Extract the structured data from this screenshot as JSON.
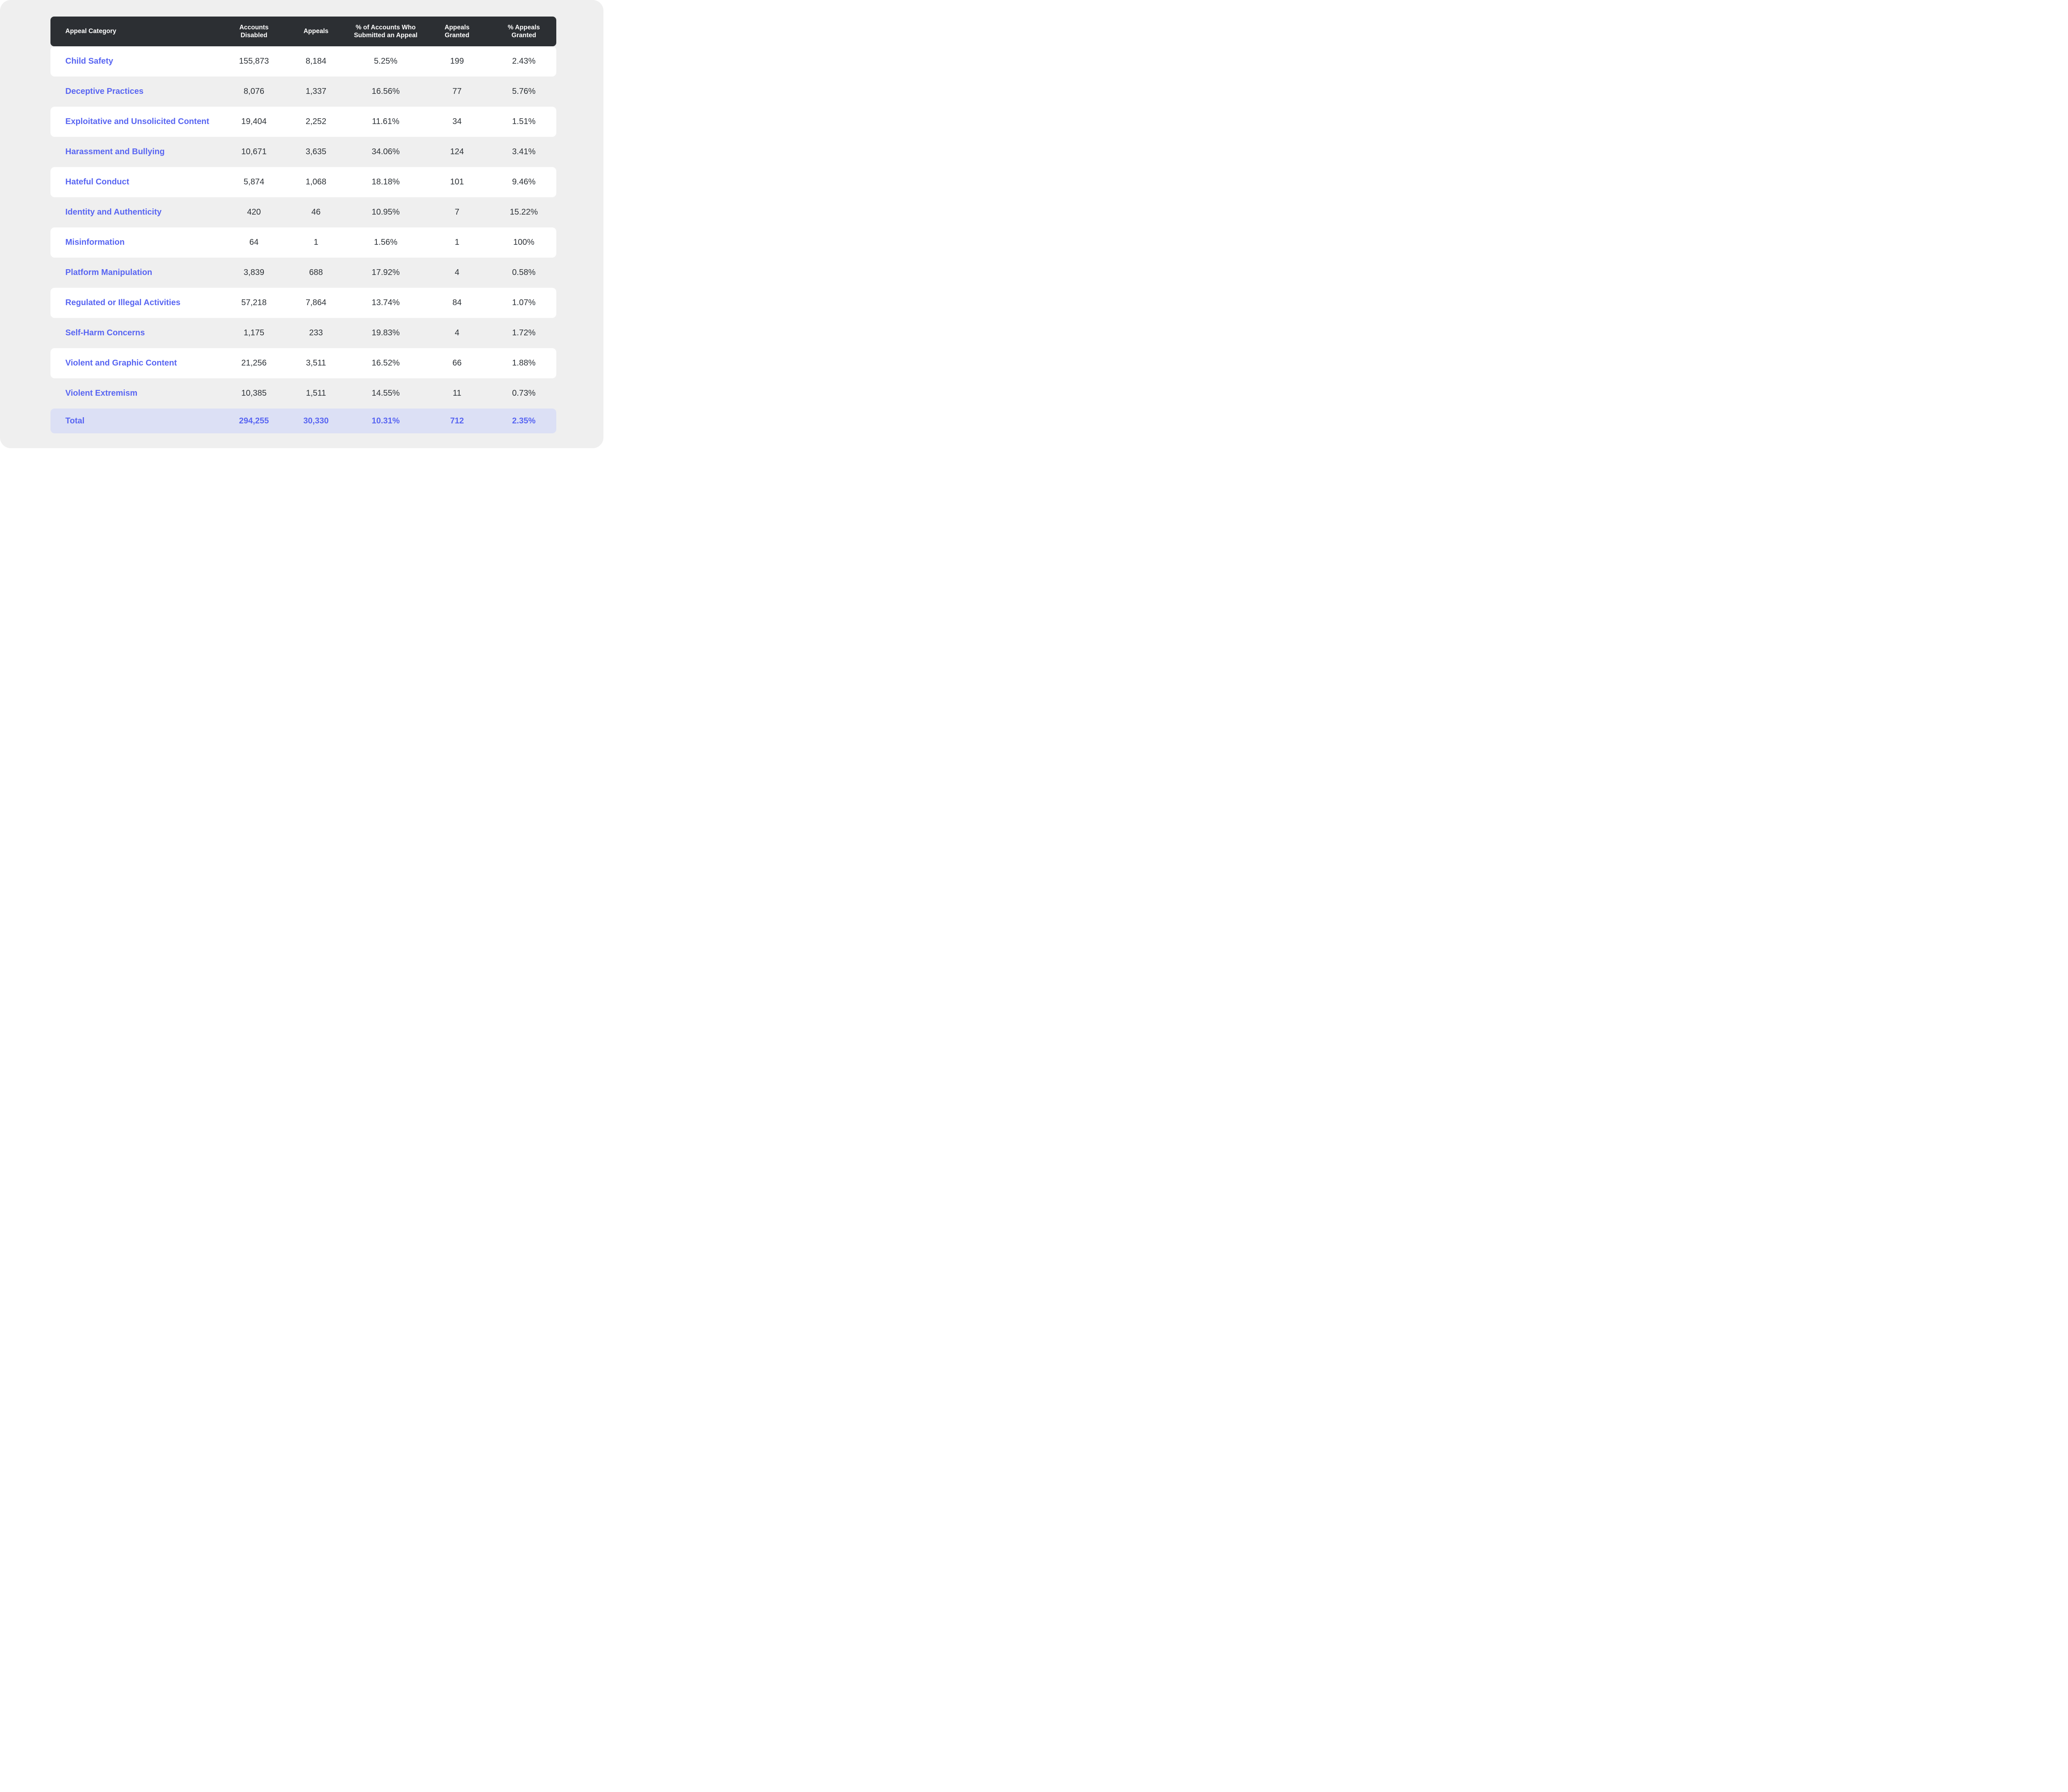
{
  "chart_data": {
    "type": "table",
    "columns": [
      "Appeal Category",
      "Accounts Disabled",
      "Appeals",
      "% of Accounts Who Submitted an Appeal",
      "Appeals Granted",
      "% Appeals Granted"
    ],
    "rows": [
      [
        "Child Safety",
        "155,873",
        "8,184",
        "5.25%",
        "199",
        "2.43%"
      ],
      [
        "Deceptive Practices",
        "8,076",
        "1,337",
        "16.56%",
        "77",
        "5.76%"
      ],
      [
        "Exploitative and Unsolicited Content",
        "19,404",
        "2,252",
        "11.61%",
        "34",
        "1.51%"
      ],
      [
        "Harassment and Bullying",
        "10,671",
        "3,635",
        "34.06%",
        "124",
        "3.41%"
      ],
      [
        "Hateful Conduct",
        "5,874",
        "1,068",
        "18.18%",
        "101",
        "9.46%"
      ],
      [
        "Identity and Authenticity",
        "420",
        "46",
        "10.95%",
        "7",
        "15.22%"
      ],
      [
        "Misinformation",
        "64",
        "1",
        "1.56%",
        "1",
        "100%"
      ],
      [
        "Platform Manipulation",
        "3,839",
        "688",
        "17.92%",
        "4",
        "0.58%"
      ],
      [
        "Regulated or Illegal Activities",
        "57,218",
        "7,864",
        "13.74%",
        "84",
        "1.07%"
      ],
      [
        "Self-Harm Concerns",
        "1,175",
        "233",
        "19.83%",
        "4",
        "1.72%"
      ],
      [
        "Violent and Graphic Content",
        "21,256",
        "3,511",
        "16.52%",
        "66",
        "1.88%"
      ],
      [
        "Violent Extremism",
        "10,385",
        "1,511",
        "14.55%",
        "11",
        "0.73%"
      ]
    ],
    "total": [
      "Total",
      "294,255",
      "30,330",
      "10.31%",
      "712",
      "2.35%"
    ],
    "layout": {
      "row_striping": "white-gray-alternating",
      "total_row_highlight": true
    }
  },
  "colors": {
    "accent": "#5865F2",
    "header_bg": "#2C2F33",
    "header_text": "#FFFFFF",
    "page_bg": "#EFEFEF",
    "row_white": "#FFFFFF",
    "total_bg": "#DCE0F5",
    "value_text": "#2E3338"
  }
}
